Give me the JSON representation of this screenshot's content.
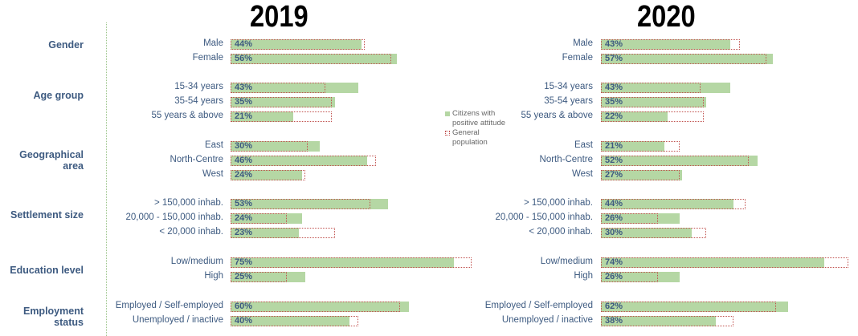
{
  "chart_data": [
    {
      "type": "bar",
      "title": "2019",
      "orientation": "horizontal",
      "unit": "%",
      "groups": [
        {
          "label": "Gender",
          "categories": [
            "Male",
            "Female"
          ]
        },
        {
          "label": "Age group",
          "categories": [
            "15-34 years",
            "35-54 years",
            "55 years & above"
          ]
        },
        {
          "label": "Geographical area",
          "categories": [
            "East",
            "North-Centre",
            "West"
          ]
        },
        {
          "label": "Settlement size",
          "categories": [
            "> 150,000 inhab.",
            "20,000 - 150,000 inhab.",
            "< 20,000 inhab."
          ]
        },
        {
          "label": "Education level",
          "categories": [
            "Low/medium",
            "High"
          ]
        },
        {
          "label": "Employment status",
          "categories": [
            "Employed / Self-employed",
            "Unemployed / inactive"
          ]
        }
      ],
      "series": [
        {
          "name": "Citizens with positive attitude",
          "values": [
            44,
            56,
            43,
            35,
            21,
            30,
            46,
            24,
            53,
            24,
            23,
            75,
            25,
            60,
            40
          ],
          "labels": [
            "44%",
            "56%",
            "43%",
            "35%",
            "21%",
            "30%",
            "46%",
            "24%",
            "53%",
            "24%",
            "23%",
            "75%",
            "25%",
            "60%",
            "40%"
          ]
        },
        {
          "name": "General population",
          "values": [
            45,
            54,
            32,
            34,
            34,
            26,
            49,
            25,
            47,
            19,
            35,
            81,
            19,
            57,
            43
          ]
        }
      ]
    },
    {
      "type": "bar",
      "title": "2020",
      "orientation": "horizontal",
      "unit": "%",
      "groups": [
        {
          "label": "Gender",
          "categories": [
            "Male",
            "Female"
          ]
        },
        {
          "label": "Age group",
          "categories": [
            "15-34 years",
            "35-54 years",
            "55 years & above"
          ]
        },
        {
          "label": "Geographical area",
          "categories": [
            "East",
            "North-Centre",
            "West"
          ]
        },
        {
          "label": "Settlement size",
          "categories": [
            "> 150,000 inhab.",
            "20,000 - 150,000 inhab.",
            "< 20,000 inhab."
          ]
        },
        {
          "label": "Education level",
          "categories": [
            "Low/medium",
            "High"
          ]
        },
        {
          "label": "Employment status",
          "categories": [
            "Employed / Self-employed",
            "Unemployed / inactive"
          ]
        }
      ],
      "series": [
        {
          "name": "Citizens with positive attitude",
          "values": [
            43,
            57,
            43,
            35,
            22,
            21,
            52,
            27,
            44,
            26,
            30,
            74,
            26,
            62,
            38
          ],
          "labels": [
            "43%",
            "57%",
            "43%",
            "35%",
            "22%",
            "21%",
            "52%",
            "27%",
            "44%",
            "26%",
            "30%",
            "74%",
            "26%",
            "62%",
            "38%"
          ]
        },
        {
          "name": "General population",
          "values": [
            46,
            55,
            33,
            34,
            34,
            26,
            49,
            26,
            48,
            19,
            35,
            82,
            19,
            58,
            44
          ]
        }
      ]
    }
  ],
  "legend": {
    "positive": "Citizens with positive attitude",
    "general": "General population",
    "colors": {
      "positive": "#b5d7a4",
      "general_outline": "#c0504d"
    }
  },
  "text_color": "#3d5a80"
}
